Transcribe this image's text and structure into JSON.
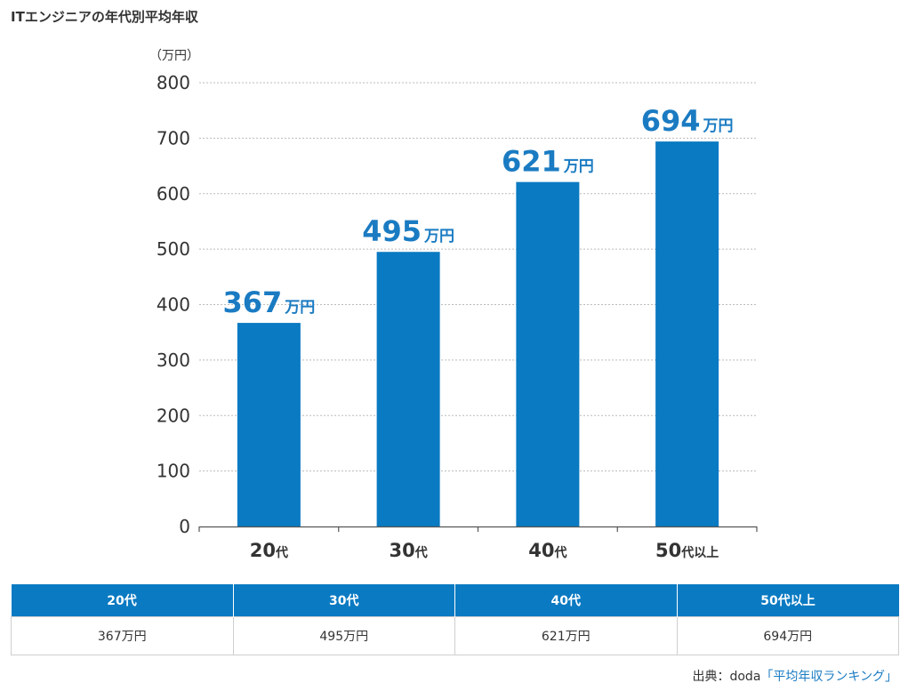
{
  "page": {
    "title": "ITエンジニアの年代別平均年収"
  },
  "colors": {
    "bar": "#0a7ac2",
    "value_label": "#1a7bc2",
    "table_header_bg": "#0a7ac2",
    "grid": "#bbbbbb"
  },
  "chart_data": {
    "type": "bar",
    "title": "ITエンジニアの年代別平均年収",
    "ylabel": "（万円）",
    "xlabel": "",
    "categories": [
      "20代",
      "30代",
      "40代",
      "50代以上"
    ],
    "category_parts": [
      {
        "num": "20",
        "suffix": "代"
      },
      {
        "num": "30",
        "suffix": "代"
      },
      {
        "num": "40",
        "suffix": "代"
      },
      {
        "num": "50",
        "suffix": "代以上"
      }
    ],
    "values": [
      367,
      495,
      621,
      694
    ],
    "value_unit": "万円",
    "ylim": [
      0,
      800
    ],
    "yticks": [
      "0",
      "100",
      "200",
      "300",
      "400",
      "500",
      "600",
      "700",
      "800"
    ],
    "grid": true,
    "legend": "none"
  },
  "table": {
    "headers": [
      "20代",
      "30代",
      "40代",
      "50代以上"
    ],
    "row": [
      "367万円",
      "495万円",
      "621万円",
      "694万円"
    ]
  },
  "source": {
    "prefix": "出典：doda",
    "link_text": "「平均年収ランキング」"
  }
}
